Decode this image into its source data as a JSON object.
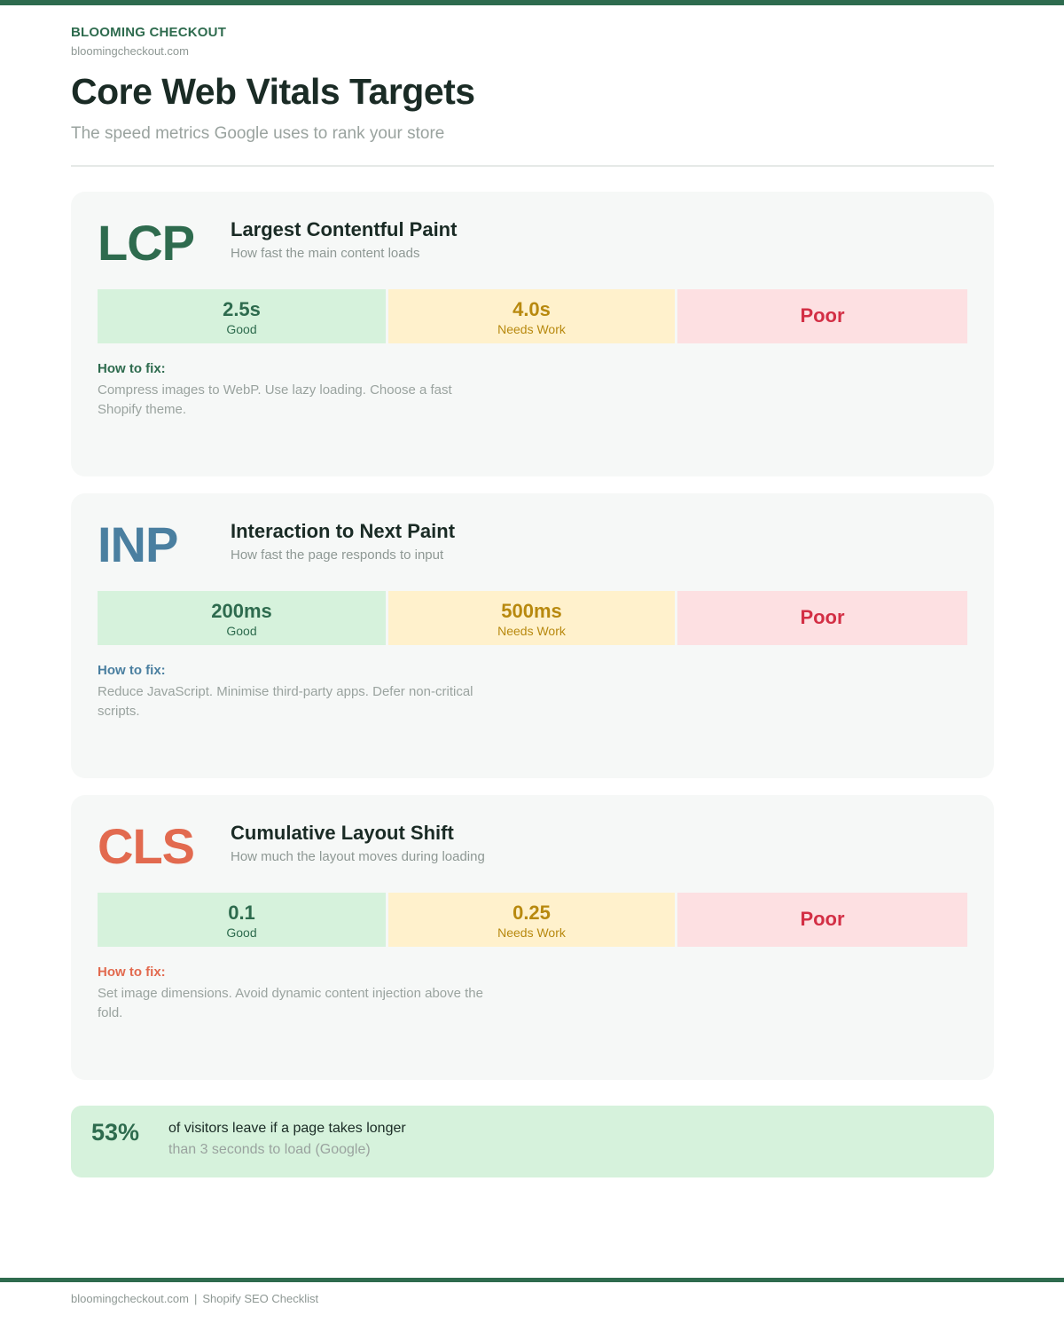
{
  "header": {
    "brand": "BLOOMING CHECKOUT",
    "domain": "bloomingcheckout.com",
    "title": "Core Web Vitals Targets",
    "subtitle": "The speed metrics Google uses to rank your store"
  },
  "metrics": [
    {
      "abbr": "LCP",
      "name": "Largest Contentful Paint",
      "desc": "How fast the main content loads",
      "accent": "#2e6b4e",
      "good_value": "2.5s",
      "good_label": "Good",
      "warn_value": "4.0s",
      "warn_label": "Needs Work",
      "poor_label": "Poor",
      "fix_heading": "How to fix:",
      "fix_text": "Compress images to WebP. Use lazy loading. Choose a fast Shopify theme."
    },
    {
      "abbr": "INP",
      "name": "Interaction to Next Paint",
      "desc": "How fast the page responds to input",
      "accent": "#4a7fa0",
      "good_value": "200ms",
      "good_label": "Good",
      "warn_value": "500ms",
      "warn_label": "Needs Work",
      "poor_label": "Poor",
      "fix_heading": "How to fix:",
      "fix_text": "Reduce JavaScript. Minimise third-party apps. Defer non-critical scripts."
    },
    {
      "abbr": "CLS",
      "name": "Cumulative Layout Shift",
      "desc": "How much the layout moves during loading",
      "accent": "#e26a4f",
      "good_value": "0.1",
      "good_label": "Good",
      "warn_value": "0.25",
      "warn_label": "Needs Work",
      "poor_label": "Poor",
      "fix_heading": "How to fix:",
      "fix_text": "Set image dimensions. Avoid dynamic content injection above the fold."
    }
  ],
  "stat": {
    "value": "53%",
    "line1": "of visitors leave if a page takes longer",
    "line2": "than 3 seconds to load (Google)"
  },
  "footer": {
    "domain": "bloomingcheckout.com",
    "separator": "|",
    "label": "Shopify SEO Checklist"
  },
  "colors": {
    "brand": "#2e6b4e",
    "good_bg": "#d6f2dc",
    "warn_bg": "#fff1cc",
    "poor_bg": "#fde0e2",
    "poor_text": "#d32f45"
  }
}
